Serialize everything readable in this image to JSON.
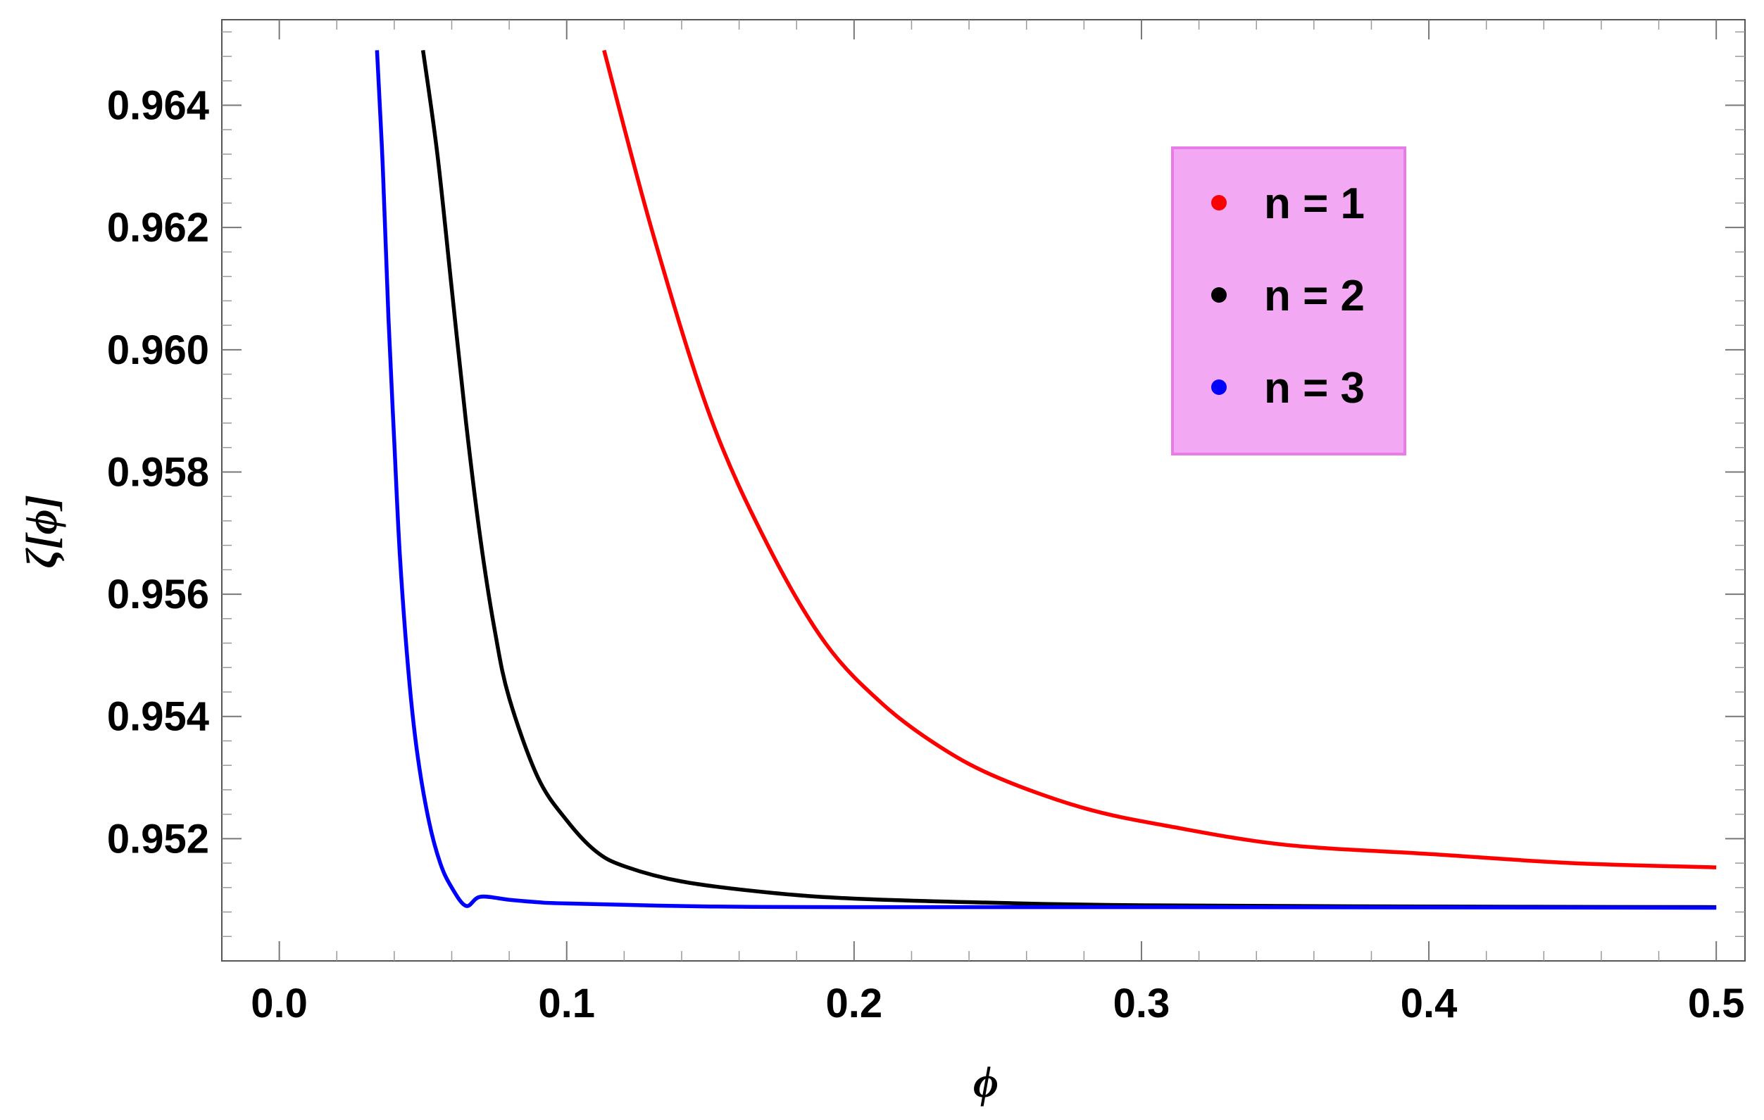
{
  "chart_data": {
    "type": "line",
    "title": "",
    "xlabel": "ϕ",
    "ylabel": "ζ[ϕ]",
    "xlim": [
      -0.02,
      0.51
    ],
    "ylim": [
      0.95,
      0.9654
    ],
    "x_ticks": [
      0.0,
      0.1,
      0.2,
      0.3,
      0.4,
      0.5
    ],
    "x_tick_labels": [
      "0.0",
      "0.1",
      "0.2",
      "0.3",
      "0.4",
      "0.5"
    ],
    "y_ticks": [
      0.952,
      0.954,
      0.956,
      0.958,
      0.96,
      0.962,
      0.964
    ],
    "y_tick_labels": [
      "0.952",
      "0.954",
      "0.956",
      "0.958",
      "0.960",
      "0.962",
      "0.964"
    ],
    "grid": false,
    "frame": true,
    "legend": {
      "position": "top-right",
      "background": "#f2a8f2",
      "border": "#e97be9"
    },
    "series": [
      {
        "name": "n = 1",
        "color": "#ff0000",
        "x": [
          0.113,
          0.13,
          0.15,
          0.17,
          0.19,
          0.21,
          0.23,
          0.25,
          0.28,
          0.31,
          0.35,
          0.4,
          0.45,
          0.5
        ],
        "y": [
          0.9649,
          0.9619,
          0.9589,
          0.9568,
          0.9552,
          0.9542,
          0.9535,
          0.953,
          0.9525,
          0.9522,
          0.9519,
          0.95175,
          0.9516,
          0.95153
        ]
      },
      {
        "name": "n = 2",
        "color": "#000000",
        "x": [
          0.05,
          0.055,
          0.06,
          0.065,
          0.07,
          0.075,
          0.08,
          0.09,
          0.1,
          0.11,
          0.12,
          0.14,
          0.17,
          0.2,
          0.25,
          0.3,
          0.4,
          0.5
        ],
        "y": [
          0.9649,
          0.9632,
          0.961,
          0.9588,
          0.9569,
          0.9554,
          0.9543,
          0.953,
          0.9523,
          0.9518,
          0.95155,
          0.9513,
          0.95112,
          0.95102,
          0.95095,
          0.95091,
          0.95089,
          0.95088
        ]
      },
      {
        "name": "n = 3",
        "color": "#0000ff",
        "x": [
          0.034,
          0.036,
          0.038,
          0.04,
          0.042,
          0.045,
          0.048,
          0.052,
          0.056,
          0.06,
          0.065,
          0.07,
          0.08,
          0.09,
          0.1,
          0.15,
          0.2,
          0.3,
          0.5
        ],
        "y": [
          0.9649,
          0.963,
          0.9605,
          0.9585,
          0.9566,
          0.9547,
          0.9534,
          0.9523,
          0.9516,
          0.9512,
          0.9509,
          0.95105,
          0.951,
          0.95096,
          0.95094,
          0.95089,
          0.95088,
          0.95088,
          0.95087
        ]
      }
    ]
  }
}
